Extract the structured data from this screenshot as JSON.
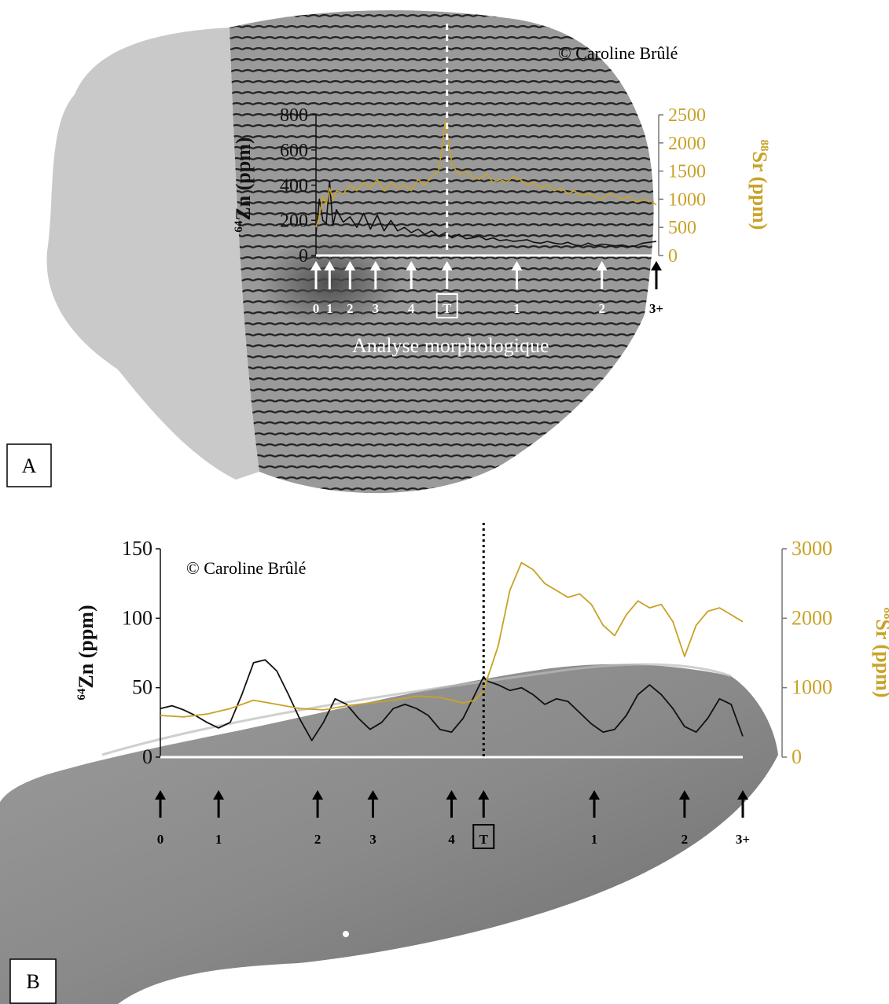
{
  "panels": {
    "A": {
      "label": "A",
      "credit": "© Caroline Brûlé",
      "caption": "Analyse morphologique"
    },
    "B": {
      "label": "B",
      "credit": "© Caroline Brûlé"
    }
  },
  "colors": {
    "zn": "#111111",
    "sr": "#c9a227",
    "axis_white": "#ffffff"
  },
  "chart_data": [
    {
      "panel": "A",
      "type": "line",
      "title": "",
      "y_left": {
        "label_sup": "64",
        "label_main": "Zn (ppm)",
        "ticks": [
          "0",
          "200",
          "400",
          "600",
          "800"
        ],
        "range": [
          0,
          800
        ]
      },
      "y_right": {
        "label_sup": "88",
        "label_main": "Sr (ppm)",
        "ticks": [
          "0",
          "500",
          "1000",
          "1500",
          "2000",
          "2500"
        ],
        "range": [
          0,
          2500
        ]
      },
      "x_range": [
        0,
        100
      ],
      "markers": [
        {
          "label": "0",
          "x": 0
        },
        {
          "label": "1",
          "x": 4
        },
        {
          "label": "2",
          "x": 10
        },
        {
          "label": "3",
          "x": 17.5
        },
        {
          "label": "4",
          "x": 28
        },
        {
          "label": "T",
          "x": 38.5,
          "boxed": true,
          "dashed_line": true
        },
        {
          "label": "1",
          "x": 59
        },
        {
          "label": "2",
          "x": 84
        },
        {
          "label": "3+",
          "x": 100,
          "dark": true
        }
      ],
      "series": [
        {
          "name": "64Zn",
          "axis": "left",
          "color_key": "zn",
          "x": [
            0,
            1,
            2,
            3,
            4,
            5,
            6,
            8,
            10,
            12,
            14,
            16,
            18,
            20,
            22,
            24,
            26,
            28,
            30,
            32,
            34,
            36,
            38,
            40,
            42,
            44,
            46,
            48,
            50,
            52,
            54,
            56,
            58,
            60,
            62,
            64,
            66,
            68,
            70,
            72,
            74,
            76,
            78,
            80,
            82,
            84,
            86,
            88,
            90,
            92,
            94,
            96,
            98,
            100
          ],
          "y": [
            120,
            320,
            200,
            180,
            420,
            170,
            260,
            190,
            220,
            160,
            240,
            150,
            230,
            140,
            200,
            140,
            160,
            130,
            150,
            120,
            140,
            110,
            130,
            100,
            120,
            95,
            100,
            110,
            90,
            100,
            85,
            90,
            80,
            85,
            90,
            75,
            70,
            80,
            70,
            65,
            75,
            60,
            55,
            70,
            55,
            65,
            60,
            55,
            60,
            50,
            55,
            70,
            75,
            80
          ]
        },
        {
          "name": "88Sr",
          "axis": "right",
          "color_key": "sr",
          "x": [
            0,
            1,
            2,
            3,
            4,
            5,
            6,
            8,
            10,
            12,
            14,
            16,
            18,
            20,
            22,
            24,
            26,
            28,
            30,
            32,
            34,
            36,
            37,
            38,
            40,
            42,
            44,
            46,
            48,
            50,
            52,
            54,
            56,
            58,
            60,
            62,
            64,
            66,
            68,
            70,
            72,
            74,
            76,
            78,
            80,
            82,
            84,
            86,
            88,
            90,
            92,
            94,
            96,
            98,
            100
          ],
          "y": [
            500,
            700,
            1050,
            900,
            1200,
            1000,
            1150,
            1100,
            1250,
            1150,
            1300,
            1200,
            1350,
            1150,
            1300,
            1200,
            1250,
            1150,
            1350,
            1250,
            1400,
            1500,
            1900,
            2400,
            1600,
            1450,
            1500,
            1400,
            1350,
            1450,
            1300,
            1350,
            1300,
            1400,
            1350,
            1250,
            1300,
            1200,
            1250,
            1150,
            1200,
            1100,
            1150,
            1050,
            1100,
            1050,
            1000,
            1100,
            1050,
            1000,
            1050,
            950,
            1000,
            980,
            900
          ]
        }
      ]
    },
    {
      "panel": "B",
      "type": "line",
      "title": "",
      "y_left": {
        "label_sup": "64",
        "label_main": "Zn (ppm)",
        "ticks": [
          "0",
          "50",
          "100",
          "150"
        ],
        "range": [
          0,
          150
        ]
      },
      "y_right": {
        "label_sup": "88",
        "label_main": "Sr (ppm)",
        "ticks": [
          "0",
          "1000",
          "2000",
          "3000"
        ],
        "range": [
          0,
          3000
        ]
      },
      "x_range": [
        0,
        100
      ],
      "markers": [
        {
          "label": "0",
          "x": 0
        },
        {
          "label": "1",
          "x": 10
        },
        {
          "label": "2",
          "x": 27
        },
        {
          "label": "3",
          "x": 36.5
        },
        {
          "label": "4",
          "x": 50
        },
        {
          "label": "T",
          "x": 55.5,
          "boxed": true,
          "dotted_line": true
        },
        {
          "label": "1",
          "x": 74.5
        },
        {
          "label": "2",
          "x": 90
        },
        {
          "label": "3+",
          "x": 100
        }
      ],
      "series": [
        {
          "name": "64Zn",
          "axis": "left",
          "color_key": "zn",
          "x": [
            0,
            2,
            4,
            6,
            8,
            10,
            12,
            14,
            16,
            18,
            20,
            22,
            24,
            26,
            28,
            30,
            32,
            34,
            36,
            38,
            40,
            42,
            44,
            46,
            48,
            50,
            52,
            54,
            55.5,
            56,
            58,
            60,
            62,
            64,
            66,
            68,
            70,
            72,
            74,
            76,
            78,
            80,
            82,
            84,
            86,
            88,
            90,
            92,
            94,
            96,
            98,
            100
          ],
          "y": [
            35,
            37,
            34,
            30,
            25,
            21,
            25,
            45,
            68,
            70,
            62,
            45,
            27,
            12,
            25,
            42,
            38,
            28,
            20,
            25,
            35,
            38,
            35,
            30,
            20,
            18,
            28,
            45,
            58,
            55,
            52,
            48,
            50,
            45,
            38,
            42,
            40,
            32,
            24,
            18,
            20,
            30,
            45,
            52,
            45,
            35,
            22,
            18,
            28,
            42,
            38,
            15
          ]
        },
        {
          "name": "88Sr",
          "axis": "right",
          "color_key": "sr",
          "x": [
            0,
            4,
            8,
            12,
            16,
            20,
            24,
            28,
            32,
            36,
            40,
            44,
            48,
            52,
            54,
            55.5,
            56,
            58,
            60,
            62,
            64,
            66,
            68,
            70,
            72,
            74,
            76,
            78,
            80,
            82,
            84,
            86,
            88,
            90,
            92,
            94,
            96,
            98,
            100
          ],
          "y": [
            600,
            580,
            620,
            700,
            820,
            760,
            700,
            680,
            740,
            780,
            820,
            880,
            860,
            780,
            820,
            950,
            1100,
            1600,
            2400,
            2800,
            2700,
            2500,
            2400,
            2300,
            2350,
            2200,
            1900,
            1750,
            2050,
            2250,
            2150,
            2200,
            1950,
            1450,
            1900,
            2100,
            2150,
            2050,
            1950
          ]
        }
      ]
    }
  ]
}
